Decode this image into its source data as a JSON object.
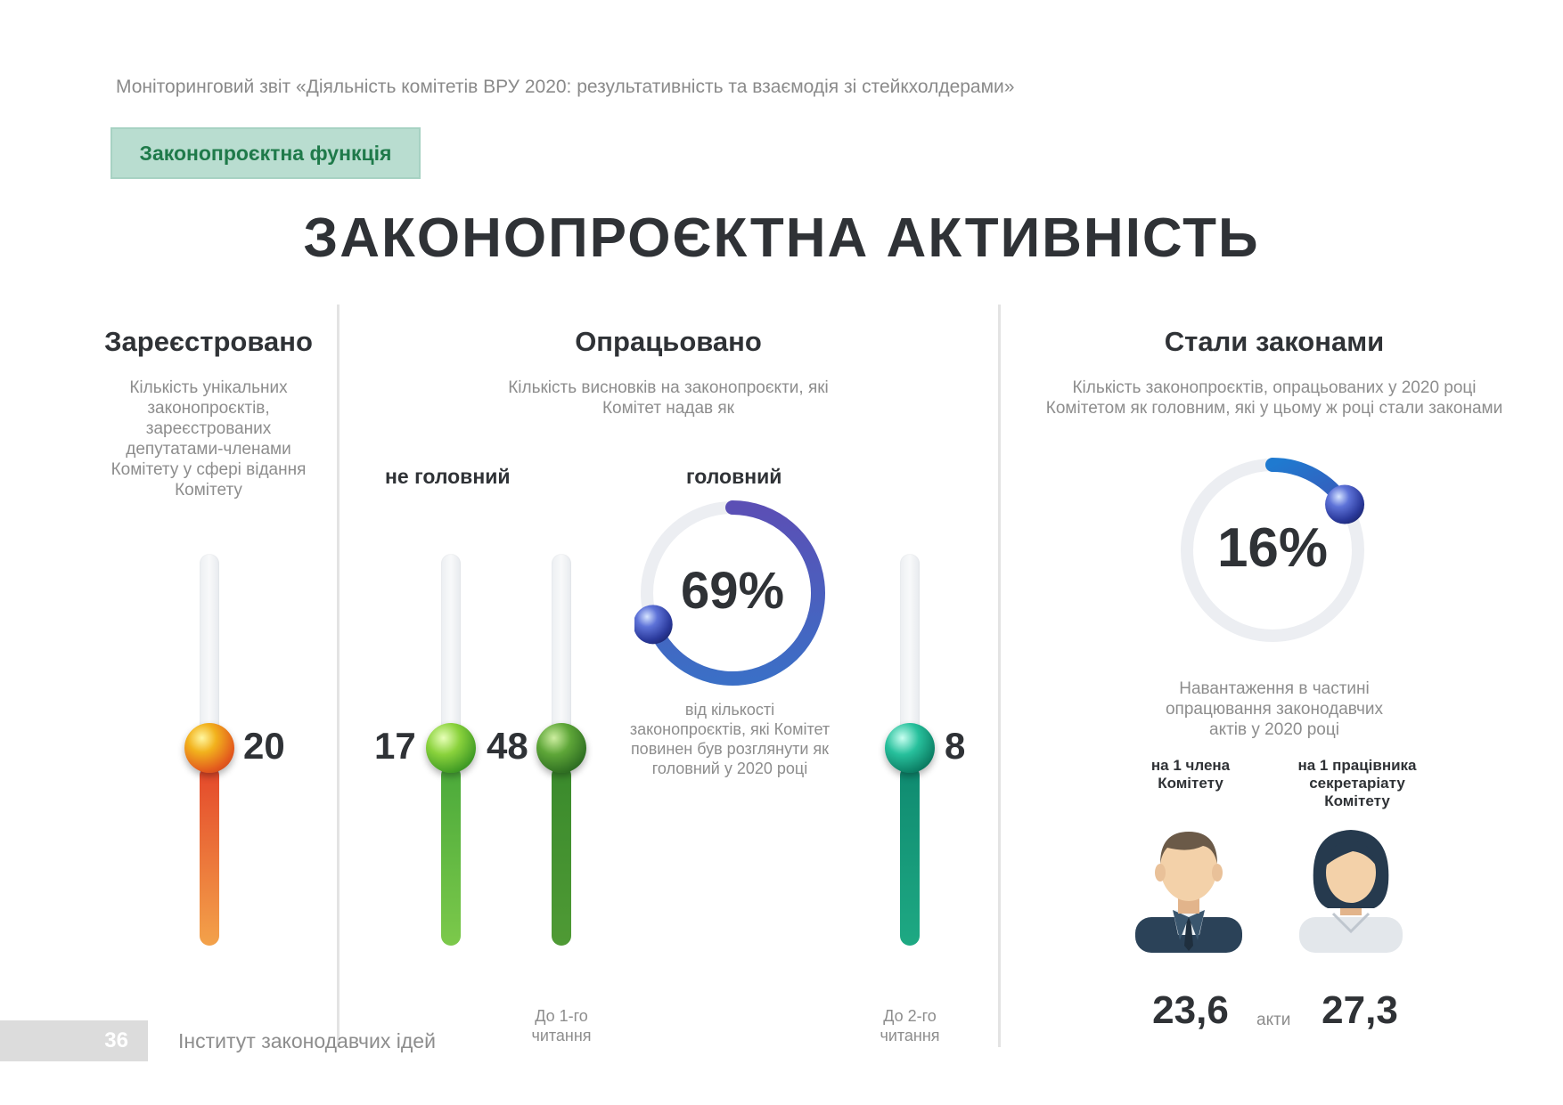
{
  "header": {
    "report_title": "Моніторинговий звіт «Діяльність комітетів ВРУ 2020: результативність та взаємодія зі стейкхолдерами»",
    "section_tag": "Законопроєктна функція"
  },
  "main_title": "ЗАКОНОПРОЄКТНА АКТИВНІСТЬ",
  "registered": {
    "title": "Зареєстровано",
    "description": "Кількість унікальних законопроєктів, зареєстрованих депутатами-членами Комітету у сфері відання Комітету",
    "value": "20",
    "fill_fraction": 0.46,
    "color": "#e8641e"
  },
  "processed": {
    "title": "Опрацьовано",
    "description": "Кількість висновків на законопроєкти, які Комітет надав як",
    "not_main_label": "не головний",
    "main_label": "головний",
    "not_main_value": "17",
    "first_reading_value": "48",
    "second_reading_value": "8",
    "first_reading_label": "До 1-го читання",
    "second_reading_label": "До 2-го читання",
    "main_percent": "69%",
    "main_fraction": 0.69,
    "main_note": "від кількості законопроєктів, які Комітет повинен був розглянути як головний у 2020 році",
    "colors": {
      "not_main": "#5bb83a",
      "first_reading": "#3d8a2e",
      "second_reading": "#14957a",
      "ring": "#4a57b5"
    }
  },
  "laws": {
    "title": "Стали законами",
    "description": "Кількість законопроєктів, опрацьованих у 2020 році Комітетом як головним, які у цьому ж  році стали законами",
    "percent": "16%",
    "fraction": 0.16,
    "workload_label": "Навантаження в частині опрацювання законодавчих актів у 2020 році",
    "per_member_label": "на 1 члена Комітету",
    "per_staff_label": "на 1 працівника секретаріату Комітету",
    "per_member_value": "23,6",
    "per_staff_value": "27,3",
    "unit_label": "акти",
    "ring_color": "#2f6fc7"
  },
  "footer": {
    "page_number": "36",
    "org_name": "Інститут законодавчих ідей"
  }
}
